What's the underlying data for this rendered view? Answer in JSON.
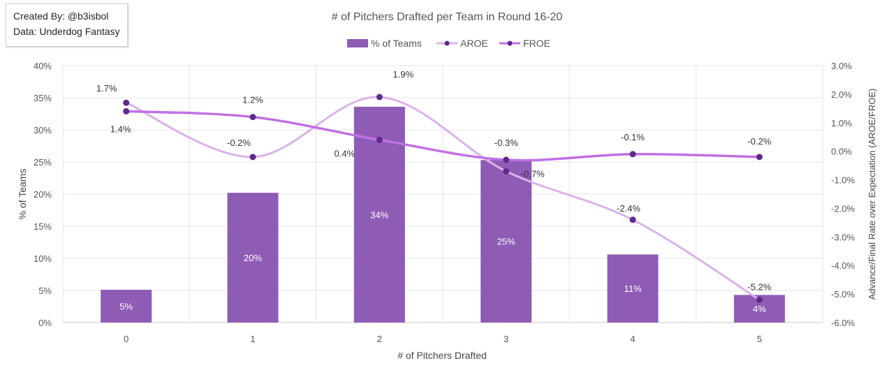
{
  "credit": {
    "line1": "Created By: @b3isbol",
    "line2": "Data: Underdog Fantasy"
  },
  "chart_data": {
    "type": "bar+line",
    "title": "# of Pitchers Drafted per Team in Round 16-20",
    "xlabel": "# of Pitchers Drafted",
    "ylabel": "% of Teams",
    "y2label": "Advance/Final Rate over Expectation (AROE/FROE)",
    "categories": [
      "0",
      "1",
      "2",
      "3",
      "4",
      "5"
    ],
    "ylim": [
      0,
      40
    ],
    "yticks": [
      "0%",
      "5%",
      "10%",
      "15%",
      "20%",
      "25%",
      "30%",
      "35%",
      "40%"
    ],
    "y2lim": [
      -6,
      3
    ],
    "y2ticks": [
      "-6.0%",
      "-5.0%",
      "-4.0%",
      "-3.0%",
      "-2.0%",
      "-1.0%",
      "0.0%",
      "1.0%",
      "2.0%",
      "3.0%"
    ],
    "grid": true,
    "legend": "top-center",
    "series": [
      {
        "name": "% of Teams",
        "type": "bar",
        "axis": "left",
        "values": [
          5.1,
          20.2,
          33.6,
          25.3,
          10.6,
          4.3
        ],
        "labels": [
          "5%",
          "20%",
          "34%",
          "25%",
          "11%",
          "4%"
        ],
        "color": "#8e5cb5"
      },
      {
        "name": "AROE",
        "type": "line",
        "axis": "right",
        "values": [
          1.7,
          -0.2,
          1.9,
          -0.7,
          -2.4,
          -5.2
        ],
        "labels": [
          "1.7%",
          "-0.2%",
          "1.9%",
          "-0.7%",
          "-2.4%",
          "-5.2%"
        ],
        "color": "#d9b3e6"
      },
      {
        "name": "FROE",
        "type": "line",
        "axis": "right",
        "values": [
          1.4,
          1.2,
          0.4,
          -0.3,
          -0.1,
          -0.2
        ],
        "labels": [
          "1.4%",
          "1.2%",
          "0.4%",
          "-0.3%",
          "-0.1%",
          "-0.2%"
        ],
        "color": "#c170e3"
      }
    ],
    "marker_color": "#5e2a8c"
  }
}
